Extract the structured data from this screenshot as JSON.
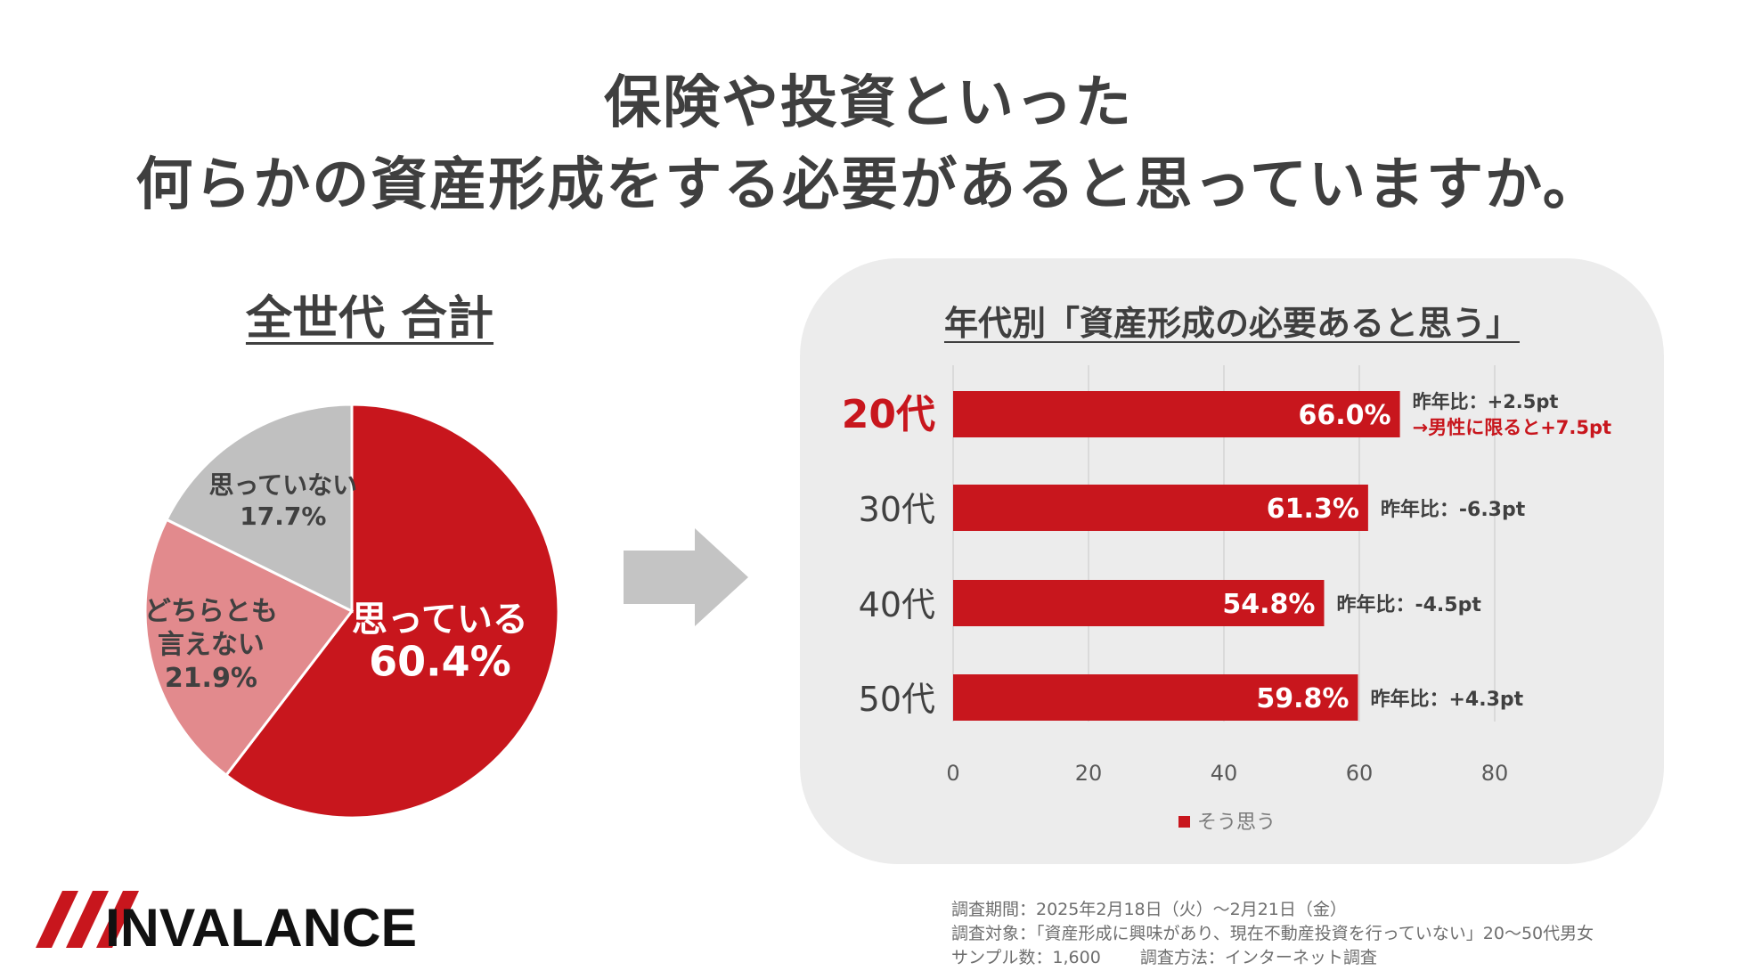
{
  "title": {
    "line1": "保険や投資といった",
    "line2": "何らかの資産形成をする必要があると思っていますか。"
  },
  "chart_data": [
    {
      "type": "pie",
      "title": "全世代 合計",
      "slices": [
        {
          "label": "思っている",
          "value": 60.4,
          "value_label": "60.4%",
          "color": "#c8161d"
        },
        {
          "label": "どちらとも言えない",
          "label_lines": [
            "どちらとも",
            "言えない"
          ],
          "value": 21.9,
          "value_label": "21.9%",
          "color": "#e28a8d"
        },
        {
          "label": "思っていない",
          "value": 17.7,
          "value_label": "17.7%",
          "color": "#c0c0c0"
        }
      ]
    },
    {
      "type": "bar",
      "orientation": "horizontal",
      "title": "年代別「資産形成の必要あると思う」",
      "categories": [
        "20代",
        "30代",
        "40代",
        "50代"
      ],
      "series": [
        {
          "name": "そう思う",
          "values": [
            66.0,
            61.3,
            54.8,
            59.8
          ],
          "value_labels": [
            "66.0%",
            "61.3%",
            "54.8%",
            "59.8%"
          ],
          "color": "#c8161d"
        }
      ],
      "xlim": [
        0,
        80
      ],
      "xticks": [
        "0",
        "20",
        "40",
        "60",
        "80"
      ],
      "highlight_category": "20代",
      "annotations": [
        {
          "lines": [
            "昨年比：+2.5pt",
            "→男性に限ると+7.5pt"
          ]
        },
        {
          "lines": [
            "昨年比：-6.3pt"
          ]
        },
        {
          "lines": [
            "昨年比：-4.5pt"
          ]
        },
        {
          "lines": [
            "昨年比：+4.3pt"
          ]
        }
      ],
      "legend": "bottom"
    }
  ],
  "footer": {
    "period": "調査期間：2025年2月18日（火）～2月21日（金）",
    "target": "調査対象：「資産形成に興味があり、現在不動産投資を行っていない」20～50代男女",
    "sample": "サンプル数：1,600　　 調査方法：インターネット調査"
  },
  "logo": {
    "text": "INVALANCE",
    "color": "#c8161d"
  },
  "colors": {
    "accent": "#c8161d",
    "accent_light": "#e28a8d",
    "gray": "#c0c0c0",
    "panel": "#ececec"
  }
}
